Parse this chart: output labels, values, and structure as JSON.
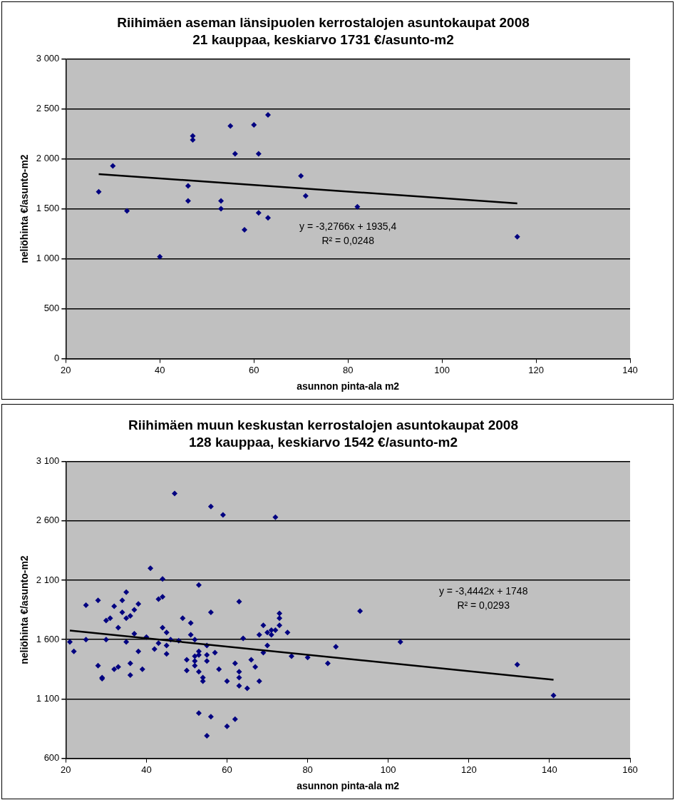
{
  "chart_data": [
    {
      "type": "scatter",
      "title": "Riihimäen aseman länsipuolen kerrostalojen asuntokaupat 2008",
      "subtitle": "21 kauppaa, keskiarvo 1731 €/asunto-m2",
      "xlabel": "asunnon pinta-ala m2",
      "ylabel": "neliöhinta €/asunto-m2",
      "xlim": [
        20,
        140
      ],
      "xticks": [
        20,
        40,
        60,
        80,
        100,
        120,
        140
      ],
      "ylim": [
        0,
        3000
      ],
      "yticks": [
        0,
        500,
        {
          "value": 1000,
          "label": "1 000"
        },
        {
          "value": 1500,
          "label": "1 500"
        },
        {
          "value": 2000,
          "label": "2 000"
        },
        {
          "value": 2500,
          "label": "2 500"
        },
        {
          "value": 3000,
          "label": "3 000"
        }
      ],
      "grid": "y",
      "legend": false,
      "marker": "diamond",
      "series": [
        {
          "color": "#000080",
          "x": [
            27,
            30,
            33,
            40,
            46,
            46,
            47,
            47,
            53,
            53,
            55,
            56,
            58,
            60,
            61,
            61,
            63,
            63,
            70,
            71,
            82,
            116
          ],
          "values": [
            1670,
            1930,
            1480,
            1020,
            1730,
            1580,
            2230,
            2190,
            1580,
            1500,
            2330,
            2050,
            1290,
            2340,
            2050,
            1460,
            2440,
            1410,
            1830,
            1630,
            1520,
            1220
          ]
        },
        {
          "type": "line",
          "color": "#000000",
          "marker": "none",
          "x": [
            27,
            116
          ],
          "values": [
            1847,
            1555
          ]
        }
      ],
      "annotations": [
        "y = -3,2766x + 1935,4",
        "R² = 0,0248"
      ]
    },
    {
      "type": "scatter",
      "title": "Riihimäen muun keskustan kerrostalojen asuntokaupat 2008",
      "subtitle": "128 kauppaa, keskiarvo 1542 €/asunto-m2",
      "xlabel": "asunnon pinta-ala m2",
      "ylabel": "neliöhinta €/asunto-m2",
      "xlim": [
        20,
        160
      ],
      "xticks": [
        20,
        40,
        60,
        80,
        100,
        120,
        140,
        160
      ],
      "ylim": [
        600,
        3100
      ],
      "yticks": [
        600,
        {
          "value": 1100,
          "label": "1 100"
        },
        {
          "value": 1600,
          "label": "1 600"
        },
        {
          "value": 2100,
          "label": "2 100"
        },
        {
          "value": 2600,
          "label": "2 600"
        },
        {
          "value": 3100,
          "label": "3 100"
        }
      ],
      "grid": "y",
      "legend": false,
      "marker": "diamond",
      "series": [
        {
          "color": "#000080",
          "x": [
            21,
            22,
            25,
            25,
            28,
            28,
            29,
            29,
            30,
            30,
            31,
            32,
            32,
            33,
            33,
            34,
            34,
            35,
            35,
            35,
            36,
            36,
            36,
            37,
            37,
            38,
            38,
            39,
            40,
            41,
            42,
            43,
            43,
            44,
            44,
            44,
            45,
            45,
            45,
            46,
            47,
            48,
            49,
            50,
            50,
            51,
            51,
            52,
            52,
            52,
            52,
            53,
            53,
            53,
            53,
            53,
            54,
            54,
            55,
            55,
            55,
            55,
            56,
            56,
            56,
            57,
            58,
            59,
            60,
            60,
            62,
            62,
            63,
            63,
            63,
            63,
            64,
            65,
            66,
            67,
            68,
            68,
            69,
            69,
            70,
            70,
            71,
            71,
            72,
            72,
            73,
            73,
            73,
            75,
            76,
            80,
            85,
            87,
            93,
            103,
            132,
            141
          ],
          "values": [
            1580,
            1500,
            1890,
            1600,
            1930,
            1380,
            1280,
            1270,
            1600,
            1760,
            1780,
            1880,
            1350,
            1370,
            1700,
            1930,
            1830,
            1780,
            2000,
            1580,
            1800,
            1400,
            1300,
            1850,
            1650,
            1900,
            1500,
            1350,
            1620,
            2200,
            1520,
            1570,
            1940,
            2110,
            1960,
            1700,
            1660,
            1550,
            1480,
            1600,
            2830,
            1590,
            1780,
            1340,
            1430,
            1740,
            1640,
            1600,
            1460,
            1420,
            1380,
            2060,
            1500,
            1470,
            1330,
            980,
            1280,
            1250,
            1470,
            1420,
            1550,
            790,
            2720,
            1830,
            950,
            1490,
            1350,
            2650,
            1250,
            870,
            1400,
            930,
            1920,
            1330,
            1280,
            1210,
            1610,
            1190,
            1430,
            1370,
            1640,
            1250,
            1720,
            1490,
            1550,
            1660,
            1680,
            1640,
            2630,
            1680,
            1780,
            1820,
            1720,
            1660,
            1460,
            1450,
            1400,
            1540,
            1840,
            1580,
            1390,
            1130
          ]
        },
        {
          "type": "line",
          "color": "#000000",
          "marker": "none",
          "x": [
            21,
            141
          ],
          "values": [
            1676,
            1262
          ]
        }
      ],
      "annotations": [
        "y = -3,4442x + 1748",
        "R² = 0,0293"
      ]
    }
  ]
}
